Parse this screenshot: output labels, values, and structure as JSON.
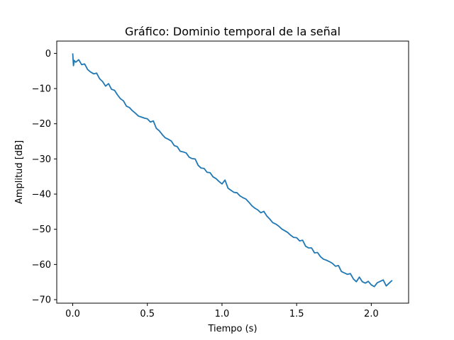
{
  "chart_data": {
    "type": "line",
    "title": "Gráfico: Dominio temporal de la señal",
    "xlabel": "Tiempo (s)",
    "ylabel": "Amplitud [dB]",
    "xlim": [
      -0.107,
      2.25
    ],
    "ylim": [
      -71,
      3.5
    ],
    "xticks": [
      0.0,
      0.5,
      1.0,
      1.5,
      2.0
    ],
    "xtick_labels": [
      "0.0",
      "0.5",
      "1.0",
      "1.5",
      "2.0"
    ],
    "yticks": [
      0,
      -10,
      -20,
      -30,
      -40,
      -50,
      -60,
      -70
    ],
    "ytick_labels": [
      "0",
      "−10",
      "−20",
      "−30",
      "−40",
      "−50",
      "−60",
      "−70"
    ],
    "grid": false,
    "legend": "none",
    "series": [
      {
        "color": "#1f77b4",
        "x": [
          0.0,
          0.005,
          0.01,
          0.02,
          0.04,
          0.06,
          0.08,
          0.1,
          0.12,
          0.14,
          0.16,
          0.18,
          0.2,
          0.22,
          0.24,
          0.26,
          0.28,
          0.3,
          0.32,
          0.34,
          0.36,
          0.38,
          0.4,
          0.42,
          0.44,
          0.46,
          0.48,
          0.5,
          0.52,
          0.54,
          0.56,
          0.58,
          0.6,
          0.62,
          0.64,
          0.66,
          0.68,
          0.7,
          0.72,
          0.74,
          0.76,
          0.78,
          0.8,
          0.82,
          0.84,
          0.86,
          0.88,
          0.9,
          0.92,
          0.94,
          0.96,
          0.98,
          1.0,
          1.02,
          1.04,
          1.06,
          1.08,
          1.1,
          1.12,
          1.14,
          1.16,
          1.18,
          1.2,
          1.22,
          1.24,
          1.26,
          1.28,
          1.3,
          1.32,
          1.34,
          1.36,
          1.38,
          1.4,
          1.42,
          1.44,
          1.46,
          1.48,
          1.5,
          1.52,
          1.54,
          1.56,
          1.58,
          1.6,
          1.62,
          1.64,
          1.66,
          1.68,
          1.7,
          1.72,
          1.74,
          1.76,
          1.78,
          1.8,
          1.82,
          1.84,
          1.86,
          1.88,
          1.9,
          1.92,
          1.94,
          1.96,
          1.98,
          2.0,
          2.02,
          2.04,
          2.06,
          2.08,
          2.1,
          2.12,
          2.14
        ],
        "y": [
          0.0,
          -3.5,
          -2.0,
          -2.5,
          -1.8,
          -3.2,
          -3.0,
          -4.6,
          -5.3,
          -5.8,
          -5.6,
          -7.2,
          -8.0,
          -9.3,
          -8.6,
          -10.2,
          -10.5,
          -11.8,
          -12.9,
          -13.5,
          -15.0,
          -15.4,
          -16.3,
          -17.0,
          -17.8,
          -18.1,
          -18.4,
          -18.6,
          -19.5,
          -19.2,
          -21.3,
          -22.0,
          -23.1,
          -24.0,
          -24.4,
          -24.9,
          -26.2,
          -26.5,
          -27.8,
          -28.0,
          -28.3,
          -29.5,
          -29.9,
          -30.0,
          -31.8,
          -32.6,
          -32.7,
          -33.8,
          -33.9,
          -35.1,
          -35.6,
          -36.4,
          -37.1,
          -36.0,
          -38.3,
          -38.9,
          -39.5,
          -39.6,
          -40.5,
          -41.0,
          -41.4,
          -42.3,
          -43.3,
          -44.0,
          -44.5,
          -45.3,
          -44.9,
          -46.2,
          -47.1,
          -48.1,
          -48.5,
          -49.1,
          -49.9,
          -50.4,
          -50.9,
          -51.7,
          -52.3,
          -52.4,
          -53.3,
          -53.1,
          -54.8,
          -55.3,
          -55.3,
          -56.7,
          -56.6,
          -57.8,
          -58.5,
          -58.8,
          -59.2,
          -59.7,
          -60.5,
          -60.3,
          -62.0,
          -62.4,
          -62.8,
          -62.6,
          -64.1,
          -64.9,
          -63.6,
          -64.9,
          -65.3,
          -64.8,
          -65.8,
          -66.3,
          -65.2,
          -64.8,
          -64.4,
          -66.1,
          -65.3,
          -64.5
        ]
      }
    ]
  }
}
